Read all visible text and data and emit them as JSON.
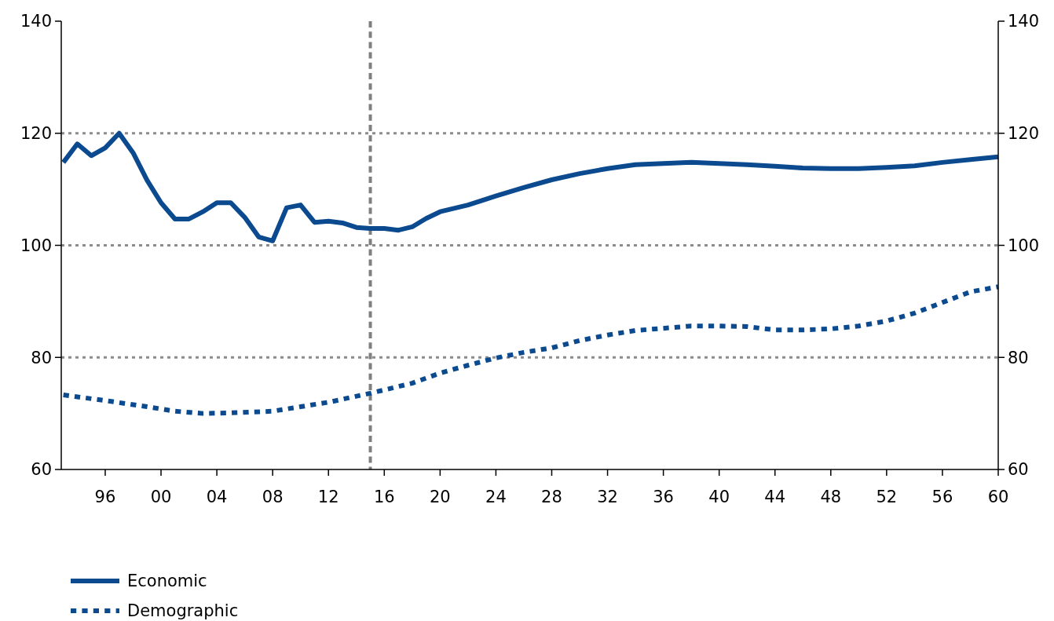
{
  "chart_data": {
    "type": "line",
    "x": [
      1993,
      1994,
      1995,
      1996,
      1997,
      1998,
      1999,
      2000,
      2001,
      2002,
      2003,
      2004,
      2005,
      2006,
      2007,
      2008,
      2009,
      2010,
      2011,
      2012,
      2013,
      2014,
      2015,
      2016,
      2017,
      2018,
      2019,
      2020,
      2022,
      2024,
      2026,
      2028,
      2030,
      2032,
      2034,
      2036,
      2038,
      2040,
      2042,
      2044,
      2046,
      2048,
      2050,
      2052,
      2054,
      2056,
      2058,
      2060
    ],
    "series": [
      {
        "name": "Economic",
        "color": "#0b4a8f",
        "line_style": "solid",
        "values": [
          114.8,
          118.1,
          116,
          117.4,
          120,
          116.5,
          111.6,
          107.6,
          104.7,
          104.7,
          106,
          107.6,
          107.6,
          105,
          101.5,
          100.8,
          106.7,
          107.2,
          104.1,
          104.3,
          104,
          103.2,
          103,
          103,
          102.7,
          103.3,
          104.8,
          106,
          107.2,
          108.8,
          110.3,
          111.7,
          112.8,
          113.7,
          114.4,
          114.6,
          114.8,
          114.6,
          114.4,
          114.1,
          113.8,
          113.7,
          113.7,
          113.9,
          114.2,
          114.8,
          115.3,
          115.8
        ]
      },
      {
        "name": "Demographic",
        "color": "#0b4a8f",
        "line_style": "dotted",
        "x": [
          1993,
          1996,
          1999,
          2001,
          2003,
          2005,
          2008,
          2010,
          2012,
          2015,
          2018,
          2020,
          2022,
          2024,
          2026,
          2028,
          2030,
          2032,
          2034,
          2036,
          2038,
          2040,
          2042,
          2044,
          2046,
          2048,
          2050,
          2052,
          2054,
          2056,
          2058,
          2060
        ],
        "values": [
          73.3,
          72.3,
          71.2,
          70.4,
          70,
          70.1,
          70.4,
          71.2,
          72,
          73.6,
          75.4,
          77.2,
          78.6,
          79.9,
          80.9,
          81.7,
          83,
          84,
          84.8,
          85.2,
          85.6,
          85.6,
          85.5,
          84.9,
          84.9,
          85.1,
          85.6,
          86.5,
          87.9,
          89.8,
          91.7,
          92.6
        ]
      }
    ],
    "xlim": [
      1992.85,
      2060
    ],
    "xticks": [
      {
        "value": 1996,
        "label": "96"
      },
      {
        "value": 2000,
        "label": "00"
      },
      {
        "value": 2004,
        "label": "04"
      },
      {
        "value": 2008,
        "label": "08"
      },
      {
        "value": 2012,
        "label": "12"
      },
      {
        "value": 2016,
        "label": "16"
      },
      {
        "value": 2020,
        "label": "20"
      },
      {
        "value": 2024,
        "label": "24"
      },
      {
        "value": 2028,
        "label": "28"
      },
      {
        "value": 2032,
        "label": "32"
      },
      {
        "value": 2036,
        "label": "36"
      },
      {
        "value": 2040,
        "label": "40"
      },
      {
        "value": 2044,
        "label": "44"
      },
      {
        "value": 2048,
        "label": "48"
      },
      {
        "value": 2052,
        "label": "52"
      },
      {
        "value": 2056,
        "label": "56"
      },
      {
        "value": 2060,
        "label": "60"
      }
    ],
    "ylim": [
      60,
      140
    ],
    "yticks": [
      60,
      80,
      100,
      120,
      140
    ],
    "y2lim": [
      60,
      140
    ],
    "y2ticks": [
      60,
      80,
      100,
      120,
      140
    ],
    "grid": "y",
    "ref_lines": [
      {
        "axis": "x",
        "value": 2015,
        "color": "#7f7f7f",
        "line_style": "dashed"
      }
    ],
    "legend": "bottom left",
    "marker": "none"
  }
}
